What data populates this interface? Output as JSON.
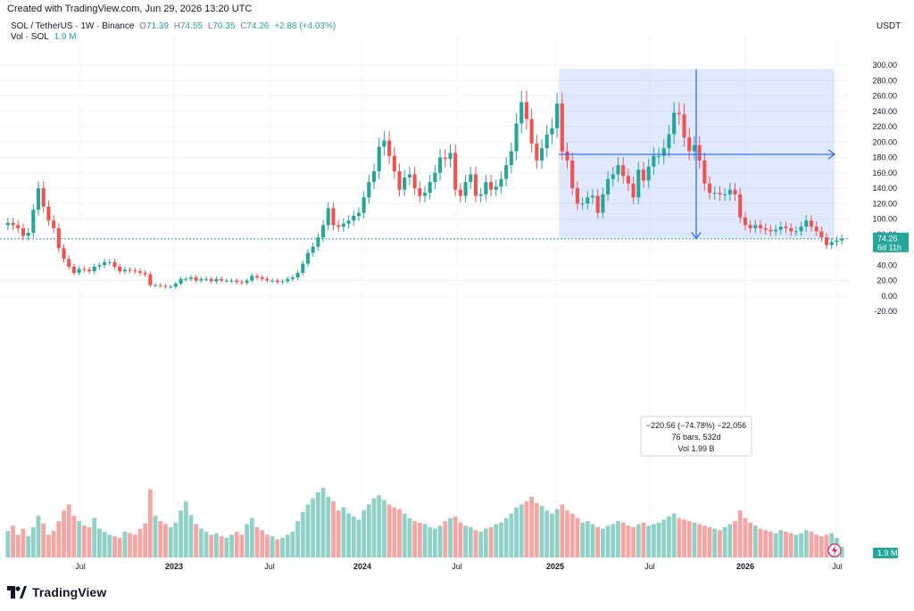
{
  "caption": "Created with TradingView.com, Jun 29, 2026 13:20 UTC",
  "legend": {
    "symbol": "SOL / TetherUS · 1W · Binance",
    "o_label": "O",
    "o": "71.39",
    "h_label": "H",
    "h": "74.55",
    "l_label": "L",
    "l": "70.35",
    "c_label": "C",
    "c": "74.26",
    "change": "+2.88 (+4.03%)",
    "vol_label": "Vol · SOL",
    "vol_value": "1.9 M"
  },
  "currency": "USDT",
  "price_axis": {
    "ticks": [
      "300.00",
      "280.00",
      "260.00",
      "240.00",
      "220.00",
      "200.00",
      "180.00",
      "160.00",
      "140.00",
      "120.00",
      "100.00",
      "80.00",
      "60.00",
      "40.00",
      "20.00",
      "0.00",
      "-20.00"
    ],
    "last_price": "74.26",
    "countdown": "6d 11h",
    "volume_badge": "1.9 M"
  },
  "time_axis": {
    "labels": [
      "Jul",
      "2023",
      "Jul",
      "2024",
      "Jul",
      "2025",
      "Jul",
      "2026",
      "Jul"
    ]
  },
  "measure_tool": {
    "line1": "−220.56 (−74.78%) −22,056",
    "line2": "76 bars, 532d",
    "line3": "Vol 1.99 B"
  },
  "brand": {
    "name": "TradingView"
  },
  "colors": {
    "up": "#26a69a",
    "down": "#ef5350",
    "measure": "#2962ff",
    "vol_up": "#8fd0c7",
    "vol_down": "#f5a5a3"
  },
  "chart_data": {
    "type": "candlestick",
    "y_unit": "USDT",
    "ylim": [
      -20,
      305
    ],
    "candles_close": [
      95,
      92,
      88,
      78,
      82,
      112,
      140,
      116,
      98,
      88,
      62,
      48,
      38,
      30,
      35,
      34,
      32,
      38,
      40,
      44,
      44,
      38,
      32,
      34,
      33,
      32,
      30,
      28,
      14,
      14,
      13,
      12,
      12,
      16,
      22,
      22,
      24,
      20,
      22,
      22,
      19,
      22,
      20,
      20,
      20,
      18,
      17,
      20,
      26,
      24,
      22,
      20,
      20,
      18,
      19,
      22,
      24,
      30,
      42,
      56,
      64,
      76,
      92,
      114,
      92,
      90,
      94,
      98,
      104,
      108,
      128,
      148,
      162,
      194,
      202,
      182,
      162,
      138,
      154,
      158,
      140,
      130,
      134,
      148,
      160,
      180,
      178,
      186,
      138,
      130,
      148,
      158,
      130,
      132,
      148,
      138,
      142,
      152,
      170,
      188,
      224,
      252,
      230,
      198,
      176,
      192,
      210,
      218,
      250,
      188,
      176,
      140,
      120,
      120,
      128,
      130,
      108,
      132,
      152,
      158,
      170,
      156,
      146,
      128,
      164,
      150,
      168,
      182,
      182,
      192,
      210,
      238,
      236,
      206,
      188,
      196,
      176,
      146,
      134,
      134,
      132,
      132,
      138,
      132,
      102,
      92,
      88,
      92,
      88,
      86,
      84,
      86,
      90,
      88,
      84,
      84,
      90,
      98,
      90,
      84,
      76,
      66,
      70,
      72,
      74.26
    ],
    "volume_relative": [
      0.35,
      0.42,
      0.3,
      0.38,
      0.28,
      0.4,
      0.55,
      0.45,
      0.3,
      0.35,
      0.48,
      0.62,
      0.7,
      0.55,
      0.48,
      0.42,
      0.4,
      0.52,
      0.38,
      0.34,
      0.3,
      0.28,
      0.26,
      0.34,
      0.32,
      0.3,
      0.38,
      0.45,
      0.9,
      0.55,
      0.48,
      0.44,
      0.4,
      0.46,
      0.62,
      0.74,
      0.56,
      0.44,
      0.38,
      0.34,
      0.3,
      0.32,
      0.28,
      0.26,
      0.3,
      0.34,
      0.3,
      0.44,
      0.52,
      0.4,
      0.36,
      0.3,
      0.28,
      0.24,
      0.26,
      0.3,
      0.34,
      0.48,
      0.6,
      0.7,
      0.78,
      0.86,
      0.92,
      0.8,
      0.74,
      0.62,
      0.66,
      0.58,
      0.54,
      0.5,
      0.62,
      0.7,
      0.78,
      0.82,
      0.76,
      0.7,
      0.66,
      0.64,
      0.58,
      0.52,
      0.48,
      0.46,
      0.44,
      0.4,
      0.38,
      0.42,
      0.48,
      0.52,
      0.54,
      0.46,
      0.42,
      0.4,
      0.36,
      0.34,
      0.38,
      0.4,
      0.44,
      0.46,
      0.52,
      0.58,
      0.66,
      0.7,
      0.74,
      0.8,
      0.72,
      0.68,
      0.62,
      0.58,
      0.64,
      0.7,
      0.62,
      0.58,
      0.52,
      0.46,
      0.48,
      0.44,
      0.4,
      0.38,
      0.42,
      0.44,
      0.48,
      0.46,
      0.42,
      0.4,
      0.44,
      0.46,
      0.42,
      0.44,
      0.46,
      0.5,
      0.54,
      0.58,
      0.52,
      0.5,
      0.48,
      0.46,
      0.44,
      0.42,
      0.4,
      0.38,
      0.36,
      0.4,
      0.44,
      0.48,
      0.62,
      0.52,
      0.46,
      0.42,
      0.38,
      0.36,
      0.34,
      0.32,
      0.36,
      0.34,
      0.32,
      0.3,
      0.32,
      0.36,
      0.34,
      0.3,
      0.28,
      0.3,
      0.32,
      0.26,
      0.14
    ]
  }
}
